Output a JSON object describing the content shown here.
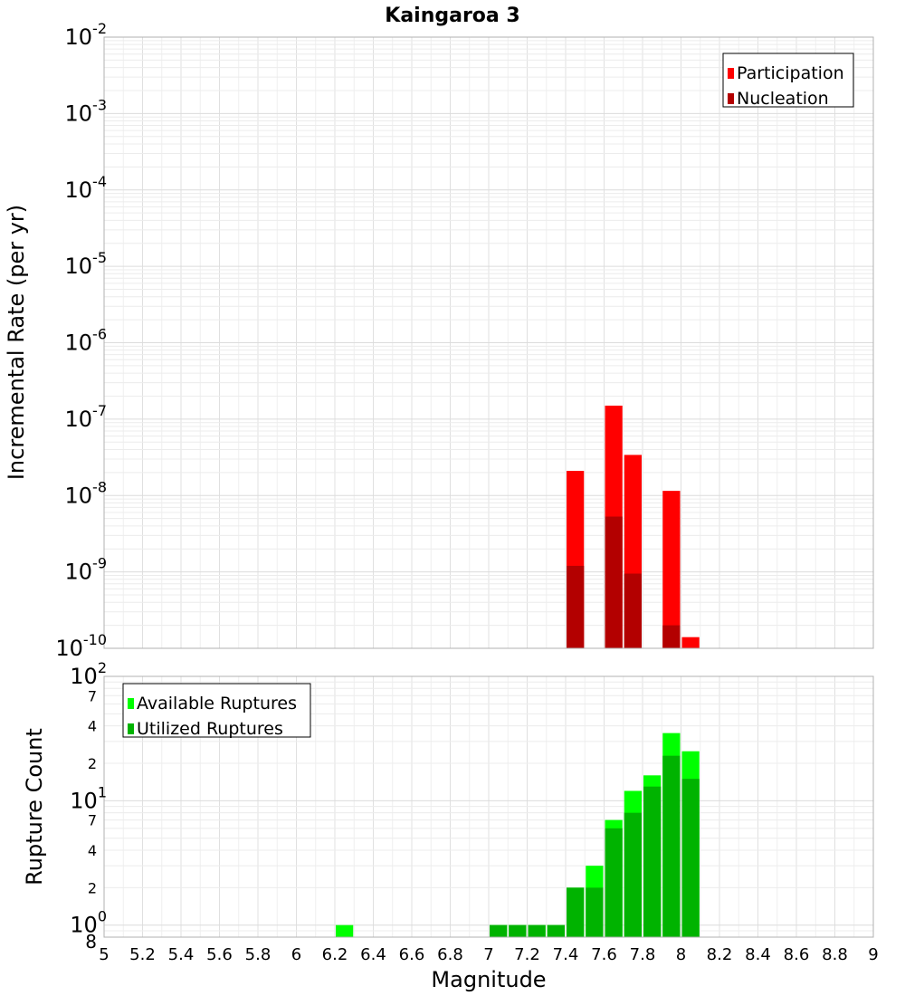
{
  "chart_data": [
    {
      "type": "bar",
      "title": "Kaingaroa 3",
      "ylabel": "Incremental Rate (per yr)",
      "xlabel": "",
      "yscale": "log",
      "ylim": [
        1e-10,
        0.01
      ],
      "xlim": [
        5,
        9
      ],
      "bar_width": 0.1,
      "grid": true,
      "legend_position": "top-right",
      "y_ticks": [
        {
          "base": "10",
          "exp": "-2"
        },
        {
          "base": "10",
          "exp": "-3"
        },
        {
          "base": "10",
          "exp": "-4"
        },
        {
          "base": "10",
          "exp": "-5"
        },
        {
          "base": "10",
          "exp": "-6"
        },
        {
          "base": "10",
          "exp": "-7"
        },
        {
          "base": "10",
          "exp": "-8"
        },
        {
          "base": "10",
          "exp": "-9"
        },
        {
          "base": "10",
          "exp": "-10"
        }
      ],
      "series": [
        {
          "name": "Participation",
          "color": "#ff0000",
          "x": [
            7.45,
            7.65,
            7.75,
            7.95,
            8.05
          ],
          "values": [
            2.1e-08,
            1.5e-07,
            3.4e-08,
            1.15e-08,
            1.4e-10
          ]
        },
        {
          "name": "Nucleation",
          "color": "#b30000",
          "x": [
            7.45,
            7.65,
            7.75,
            7.95
          ],
          "values": [
            1.2e-09,
            5.3e-09,
            9.5e-10,
            2e-10
          ]
        }
      ]
    },
    {
      "type": "bar",
      "ylabel": "Rupture Count",
      "xlabel": "Magnitude",
      "yscale": "log",
      "ylim": [
        0.8,
        100
      ],
      "xlim": [
        5,
        9
      ],
      "bar_width": 0.1,
      "grid": true,
      "legend_position": "top-left",
      "y_ticks": [
        {
          "value": 100,
          "base": "10",
          "exp": "2"
        },
        {
          "value": 70,
          "label": "7"
        },
        {
          "value": 40,
          "label": "4"
        },
        {
          "value": 20,
          "label": "2"
        },
        {
          "value": 10,
          "base": "10",
          "exp": "1"
        },
        {
          "value": 7,
          "label": "7"
        },
        {
          "value": 4,
          "label": "4"
        },
        {
          "value": 2,
          "label": "2"
        },
        {
          "value": 1,
          "base": "10",
          "exp": "0"
        },
        {
          "value": 0.8,
          "label": "8"
        }
      ],
      "x_ticks": [
        "5",
        "5.2",
        "5.4",
        "5.6",
        "5.8",
        "6",
        "6.2",
        "6.4",
        "6.6",
        "6.8",
        "7",
        "7.2",
        "7.4",
        "7.6",
        "7.8",
        "8",
        "8.2",
        "8.4",
        "8.6",
        "8.8",
        "9"
      ],
      "series": [
        {
          "name": "Available Ruptures",
          "color": "#00ff00",
          "x": [
            6.25,
            7.05,
            7.15,
            7.25,
            7.35,
            7.45,
            7.55,
            7.65,
            7.75,
            7.85,
            7.95,
            8.05
          ],
          "values": [
            1,
            1,
            1,
            1,
            1,
            2,
            3,
            7,
            12,
            16,
            35,
            25
          ]
        },
        {
          "name": "Utilized Ruptures",
          "color": "#00b300",
          "x": [
            7.05,
            7.15,
            7.25,
            7.35,
            7.45,
            7.55,
            7.65,
            7.75,
            7.85,
            7.95,
            8.05
          ],
          "values": [
            1,
            1,
            1,
            1,
            2,
            2,
            6,
            8,
            13,
            23,
            15
          ]
        }
      ]
    }
  ]
}
